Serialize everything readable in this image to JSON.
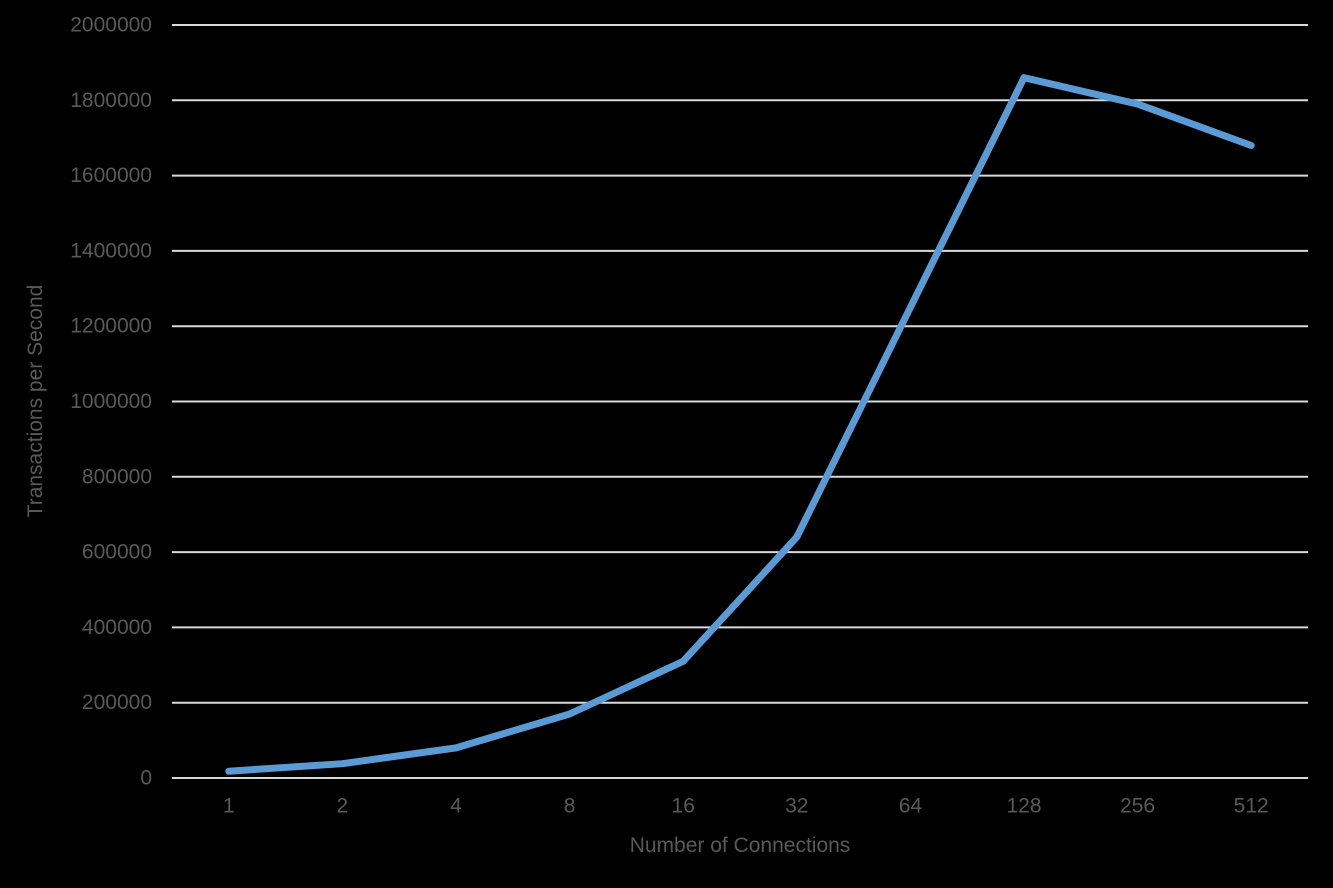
{
  "chart_data": {
    "type": "line",
    "title": "",
    "xlabel": "Number of Connections",
    "ylabel": "Transactions per Second",
    "categories": [
      "1",
      "2",
      "4",
      "8",
      "16",
      "32",
      "64",
      "128",
      "256",
      "512"
    ],
    "series": [
      {
        "values": [
          18000,
          38000,
          80000,
          170000,
          310000,
          640000,
          1250000,
          1860000,
          1790000,
          1680000
        ]
      }
    ],
    "ylim": [
      0,
      2000000
    ],
    "yticks": [
      0,
      200000,
      400000,
      600000,
      800000,
      1000000,
      1200000,
      1400000,
      1600000,
      1800000,
      2000000
    ],
    "ytick_labels": [
      "0",
      "200000",
      "400000",
      "600000",
      "800000",
      "1000000",
      "1200000",
      "1400000",
      "1600000",
      "1800000",
      "2000000"
    ],
    "grid": "horizontal",
    "legend": "none",
    "colors": {
      "background": "#000000",
      "line": "#5B9BD5",
      "gridline": "#D9D9D9",
      "text": "#595959"
    }
  }
}
